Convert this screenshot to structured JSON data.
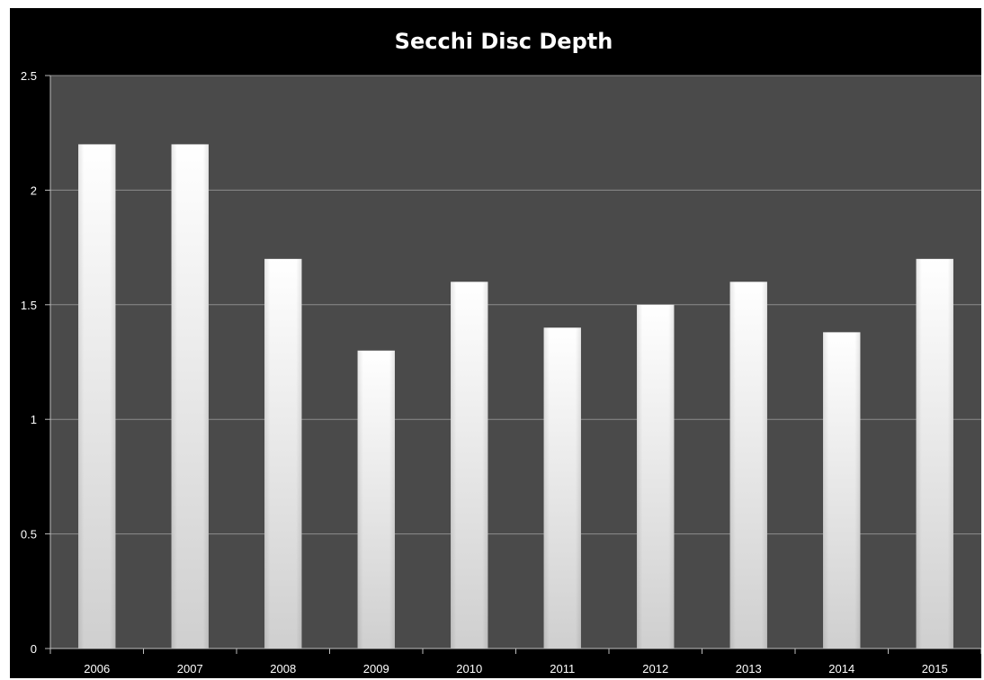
{
  "chart_data": {
    "type": "bar",
    "title": "Secchi Disc Depth",
    "xlabel": "",
    "ylabel": "",
    "categories": [
      "2006",
      "2007",
      "2008",
      "2009",
      "2010",
      "2011",
      "2012",
      "2013",
      "2014",
      "2015"
    ],
    "values": [
      2.2,
      2.2,
      1.7,
      1.3,
      1.6,
      1.4,
      1.5,
      1.6,
      1.38,
      1.7
    ],
    "ylim": [
      0,
      2.5
    ],
    "yticks": [
      "0",
      "0.5",
      "1",
      "1.5",
      "2",
      "2.5"
    ],
    "grid": true,
    "legend": "none",
    "colors": {
      "background": "#000000",
      "plot_area": "#4a4a4a",
      "gridline": "#8c8c8c",
      "bar_top": "#ffffff",
      "bar_bottom": "#cfcfcf",
      "text": "#ffffff"
    }
  }
}
